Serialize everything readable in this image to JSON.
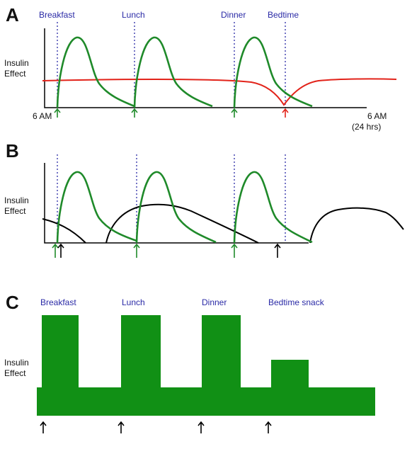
{
  "panels": [
    {
      "letter": "A",
      "y_label": [
        "Insulin",
        "Effect"
      ],
      "meal_labels": [
        "Breakfast",
        "Lunch",
        "Dinner",
        "Bedtime"
      ],
      "x_start_label": "6 AM",
      "x_end_label": [
        "6 AM",
        "(24 hrs)"
      ]
    },
    {
      "letter": "B",
      "y_label": [
        "Insulin",
        "Effect"
      ]
    },
    {
      "letter": "C",
      "y_label": [
        "Insulin",
        "Effect"
      ],
      "meal_labels": [
        "Breakfast",
        "Lunch",
        "Dinner",
        "Bedtime snack"
      ]
    }
  ],
  "colors": {
    "rapid_acting": "#1f8a2a",
    "basal": "#e2231a",
    "intermediate": "#000000",
    "bars": "#119015",
    "meal_markers": "#2a2aa6"
  }
}
